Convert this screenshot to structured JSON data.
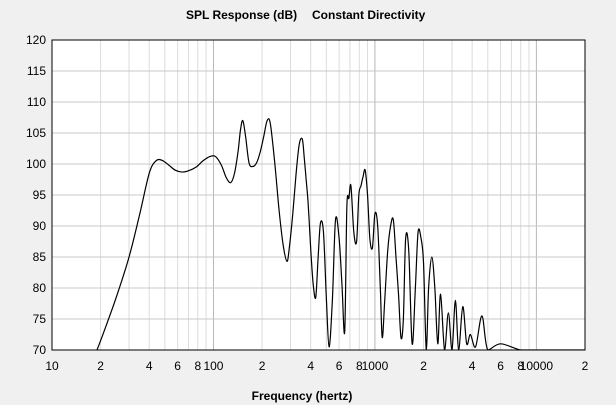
{
  "chart_data": {
    "type": "line",
    "title": "SPL Response (dB)",
    "subtitle": "Constant Directivity",
    "xlabel": "Frequency (hertz)",
    "ylabel": "",
    "xscale": "log",
    "xlim": [
      10,
      20000
    ],
    "ylim": [
      70,
      120
    ],
    "yticks": [
      70,
      75,
      80,
      85,
      90,
      95,
      100,
      105,
      110,
      115,
      120
    ],
    "ytick_labels": [
      "70",
      "75",
      "80",
      "85",
      "90",
      "95",
      "100",
      "105",
      "110",
      "115",
      "120"
    ],
    "xticks": [
      {
        "value": 10,
        "label": "10"
      },
      {
        "value": 20,
        "label": "2"
      },
      {
        "value": 40,
        "label": "4"
      },
      {
        "value": 60,
        "label": "6"
      },
      {
        "value": 80,
        "label": "8"
      },
      {
        "value": 100,
        "label": "100"
      },
      {
        "value": 200,
        "label": "2"
      },
      {
        "value": 400,
        "label": "4"
      },
      {
        "value": 600,
        "label": "6"
      },
      {
        "value": 800,
        "label": "8"
      },
      {
        "value": 1000,
        "label": "1000"
      },
      {
        "value": 2000,
        "label": "2"
      },
      {
        "value": 4000,
        "label": "4"
      },
      {
        "value": 6000,
        "label": "6"
      },
      {
        "value": 8000,
        "label": "8"
      },
      {
        "value": 10000,
        "label": "10000"
      },
      {
        "value": 20000,
        "label": "2"
      }
    ],
    "grid": true,
    "series": [
      {
        "color": "#000000",
        "x": [
          19,
          21,
          25,
          30,
          35,
          40,
          44,
          48,
          53,
          58,
          64,
          70,
          78,
          86,
          95,
          103,
          112,
          120,
          128,
          135,
          142,
          147,
          152,
          158,
          166,
          175,
          185,
          195,
          205,
          215,
          225,
          240,
          255,
          270,
          285,
          295,
          310,
          325,
          340,
          355,
          365,
          375,
          385,
          395,
          403,
          415,
          430,
          445,
          460,
          480,
          500,
          520,
          545,
          570,
          600,
          625,
          650,
          670,
          690,
          710,
          740,
          770,
          795,
          820,
          845,
          870,
          900,
          930,
          965,
          1000,
          1040,
          1080,
          1110,
          1150,
          1200,
          1250,
          1300,
          1350,
          1400,
          1450,
          1500,
          1550,
          1620,
          1700,
          1780,
          1850,
          1930,
          2000,
          2080,
          2150,
          2250,
          2350,
          2450,
          2550,
          2700,
          2850,
          3000,
          3150,
          3300,
          3500,
          3700,
          3900,
          4200,
          4600,
          5000,
          6000,
          8000,
          10000,
          15000,
          20000
        ],
        "y": [
          70,
          73,
          78.5,
          85,
          92,
          98.5,
          100.5,
          100.6,
          99.8,
          99,
          98.7,
          98.9,
          99.5,
          100.5,
          101.2,
          101.2,
          99.8,
          97.8,
          97,
          98.5,
          102,
          105.5,
          107,
          104.5,
          100.2,
          99.6,
          100.2,
          102,
          104.5,
          107,
          106.5,
          100,
          92.5,
          87,
          84.3,
          86.5,
          92,
          98.5,
          103.2,
          104,
          101,
          97.5,
          94,
          89,
          85,
          80.5,
          78.5,
          85,
          90.5,
          89,
          78.5,
          70.5,
          78,
          91,
          88,
          80.5,
          73,
          93,
          94.5,
          96.5,
          89,
          87.5,
          95,
          96.5,
          98,
          99,
          95,
          88,
          86.5,
          92,
          90,
          80,
          72,
          78,
          86,
          90,
          91,
          85,
          79,
          72,
          75,
          88,
          86,
          71,
          80,
          89,
          88,
          84,
          70,
          80,
          85,
          80,
          71,
          79,
          70,
          76,
          70,
          78,
          70,
          77,
          71,
          72.5,
          70.5,
          75.5,
          70,
          71,
          70,
          70,
          70,
          70
        ],
        "noisy_region": true
      }
    ]
  }
}
